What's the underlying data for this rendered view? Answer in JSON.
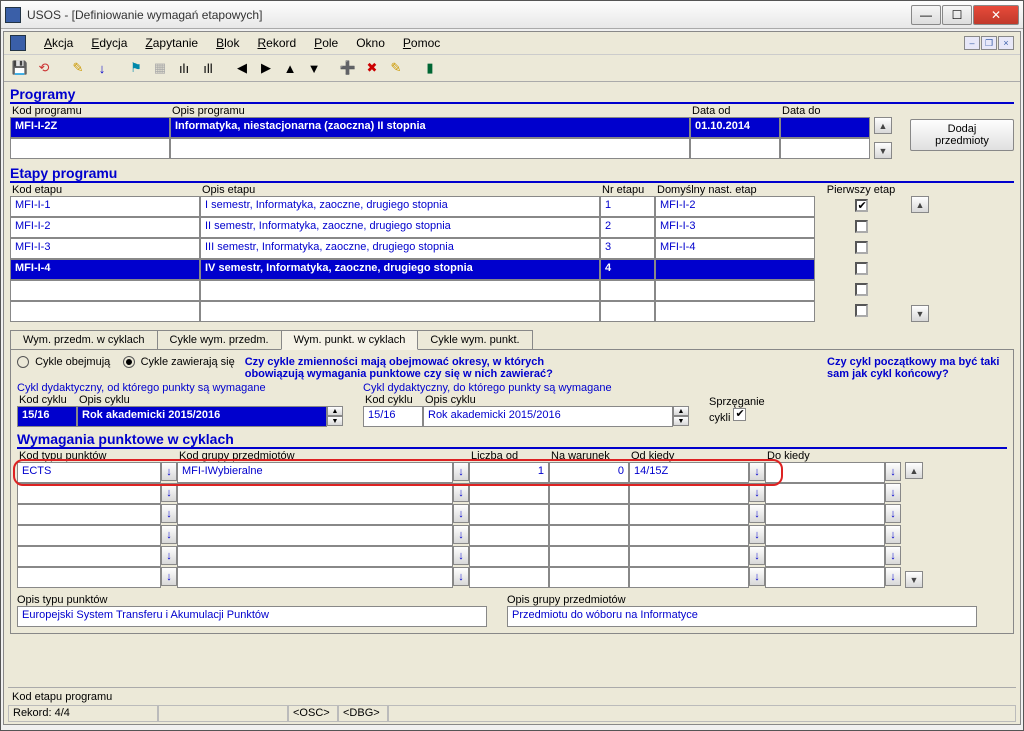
{
  "window": {
    "title": "USOS - [Definiowanie wymagań etapowych]"
  },
  "menu": {
    "items": [
      "Akcja",
      "Edycja",
      "Zapytanie",
      "Blok",
      "Rekord",
      "Pole",
      "Okno",
      "Pomoc"
    ]
  },
  "programy": {
    "title": "Programy",
    "headers": {
      "kod": "Kod programu",
      "opis": "Opis programu",
      "data_od": "Data od",
      "data_do": "Data do"
    },
    "row": {
      "kod": "MFI-I-2Z",
      "opis": "Informatyka, niestacjonarna (zaoczna) II stopnia",
      "data_od": "01.10.2014",
      "data_do": ""
    },
    "add_btn": "Dodaj przedmioty"
  },
  "etapy": {
    "title": "Etapy programu",
    "headers": {
      "kod": "Kod etapu",
      "opis": "Opis etapu",
      "nr": "Nr etapu",
      "nast": "Domyślny nast. etap",
      "pier": "Pierwszy etap"
    },
    "rows": [
      {
        "kod": "MFI-I-1",
        "opis": "I semestr, Informatyka, zaoczne, drugiego stopnia",
        "nr": "1",
        "nast": "MFI-I-2",
        "pier": true
      },
      {
        "kod": "MFI-I-2",
        "opis": "II semestr, Informatyka, zaoczne, drugiego stopnia",
        "nr": "2",
        "nast": "MFI-I-3",
        "pier": false
      },
      {
        "kod": "MFI-I-3",
        "opis": "III semestr, Informatyka, zaoczne, drugiego stopnia",
        "nr": "3",
        "nast": "MFI-I-4",
        "pier": false
      },
      {
        "kod": "MFI-I-4",
        "opis": "IV semestr, Informatyka, zaoczne, drugiego stopnia",
        "nr": "4",
        "nast": "",
        "pier": false,
        "sel": true
      },
      {
        "kod": "",
        "opis": "",
        "nr": "",
        "nast": "",
        "pier": false
      },
      {
        "kod": "",
        "opis": "",
        "nr": "",
        "nast": "",
        "pier": false
      }
    ]
  },
  "tabs": {
    "items": [
      "Wym. przedm. w cyklach",
      "Cykle wym. przedm.",
      "Wym. punkt. w cyklach",
      "Cykle wym. punkt."
    ],
    "active": 2
  },
  "cykle": {
    "radio1": "Cykle obejmują",
    "radio2": "Cykle zawierają się",
    "question": "Czy cykle zmienności mają obejmować okresy, w których obowiązują wymagania punktowe czy się w nich zawierać?",
    "left_lbl": "Cykl dydaktyczny, od którego punkty są wymagane",
    "right_lbl": "Cykl dydaktyczny, do którego punkty są wymagane",
    "kod_h": "Kod cyklu",
    "opis_h": "Opis cyklu",
    "left": {
      "kod": "15/16",
      "opis": "Rok akademicki 2015/2016"
    },
    "right": {
      "kod": "15/16",
      "opis": "Rok akademicki 2015/2016"
    },
    "side_q": "Czy cykl początkowy ma być taki sam jak cykl końcowy?",
    "sprz": "Sprzęganie",
    "cykli": "cykli"
  },
  "wym": {
    "title": "Wymagania punktowe w cyklach",
    "headers": {
      "kod": "Kod typu punktów",
      "grupa": "Kod grupy przedmiotów",
      "liczba": "Liczba od",
      "warunek": "Na warunek",
      "od": "Od kiedy",
      "do": "Do kiedy"
    },
    "rows": [
      {
        "kod": "ECTS",
        "grupa": "MFI-IWybieralne",
        "liczba": "1",
        "warunek": "0",
        "od": "14/15Z",
        "do": ""
      },
      {
        "kod": "",
        "grupa": "",
        "liczba": "",
        "warunek": "",
        "od": "",
        "do": ""
      },
      {
        "kod": "",
        "grupa": "",
        "liczba": "",
        "warunek": "",
        "od": "",
        "do": ""
      },
      {
        "kod": "",
        "grupa": "",
        "liczba": "",
        "warunek": "",
        "od": "",
        "do": ""
      },
      {
        "kod": "",
        "grupa": "",
        "liczba": "",
        "warunek": "",
        "od": "",
        "do": ""
      },
      {
        "kod": "",
        "grupa": "",
        "liczba": "",
        "warunek": "",
        "od": "",
        "do": ""
      }
    ],
    "opis_typ_h": "Opis typu punktów",
    "opis_typ": "Europejski System Transferu i Akumulacji Punktów",
    "opis_grupa_h": "Opis grupy przedmiotów",
    "opis_grupa": "Przedmiotu do wóboru na Informatyce"
  },
  "status": {
    "line1": "Kod etapu programu",
    "rekord": "Rekord: 4/4",
    "osc": "<OSC>",
    "dbg": "<DBG>"
  },
  "colors": {
    "accent": "#0000cd",
    "bg": "#ece9d8",
    "sel": "#0000cd"
  }
}
